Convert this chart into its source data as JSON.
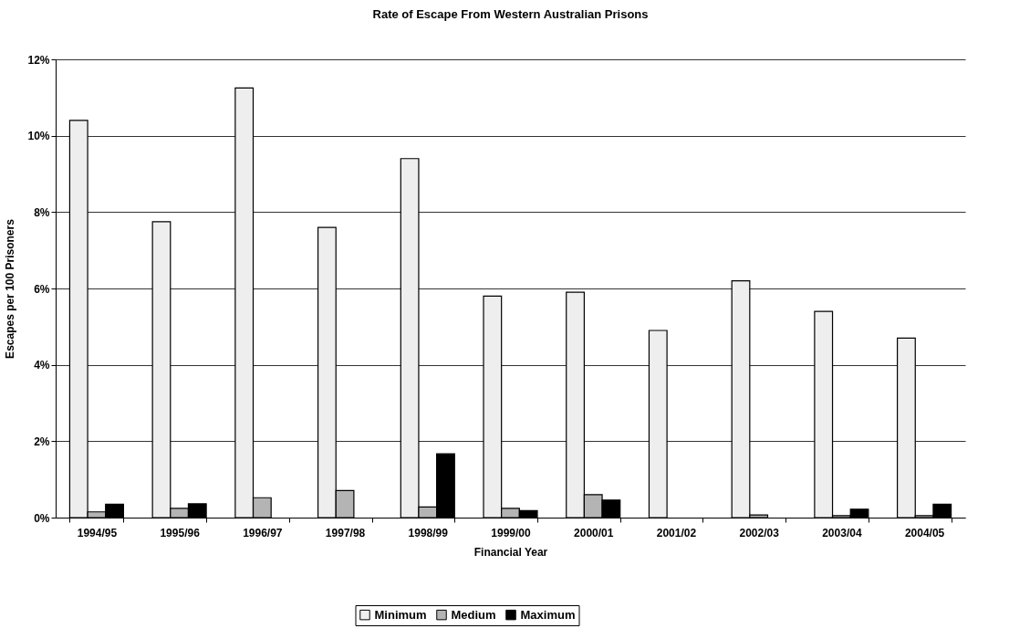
{
  "chart_data": {
    "type": "bar",
    "title": "Rate of Escape From Western Australian Prisons",
    "xlabel": "Financial Year",
    "ylabel": "Escapes per 100 Prisoners",
    "categories": [
      "1994/95",
      "1995/96",
      "1996/97",
      "1997/98",
      "1998/99",
      "1999/00",
      "2000/01",
      "2001/02",
      "2002/03",
      "2003/04",
      "2004/05"
    ],
    "series": [
      {
        "name": "Minimum",
        "color": "#eeeeee",
        "values": [
          10.4,
          7.75,
          11.25,
          7.6,
          9.4,
          5.8,
          5.9,
          4.9,
          6.2,
          5.4,
          4.7
        ]
      },
      {
        "name": "Medium",
        "color": "#b4b4b4",
        "values": [
          0.15,
          0.24,
          0.52,
          0.71,
          0.28,
          0.24,
          0.6,
          null,
          0.07,
          0.05,
          0.05
        ]
      },
      {
        "name": "Maximum",
        "color": "#000000",
        "values": [
          0.35,
          0.36,
          null,
          null,
          1.67,
          0.18,
          0.46,
          null,
          null,
          0.22,
          0.35
        ]
      }
    ],
    "ylim": [
      0,
      12
    ],
    "yticks": [
      {
        "value": 0,
        "label": "0%"
      },
      {
        "value": 2,
        "label": "2%"
      },
      {
        "value": 4,
        "label": "4%"
      },
      {
        "value": 6,
        "label": "6%"
      },
      {
        "value": 8,
        "label": "8%"
      },
      {
        "value": 10,
        "label": "10%"
      },
      {
        "value": 12,
        "label": "12%"
      }
    ],
    "grid": "y",
    "legend": "bottom"
  }
}
